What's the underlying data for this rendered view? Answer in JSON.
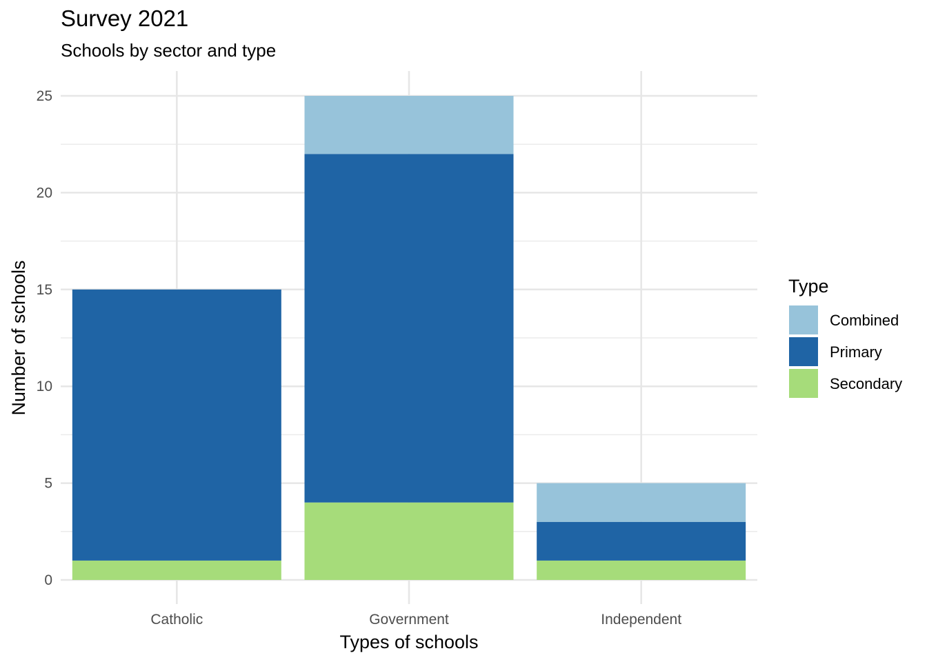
{
  "chart_data": {
    "type": "bar",
    "stacked": true,
    "title": "Survey 2021",
    "subtitle": "Schools by sector and type",
    "xlabel": "Types of schools",
    "ylabel": "Number of schools",
    "categories": [
      "Catholic",
      "Government",
      "Independent"
    ],
    "series": [
      {
        "name": "Secondary",
        "color": "#a6dc7a",
        "values": [
          1,
          4,
          1
        ]
      },
      {
        "name": "Primary",
        "color": "#1f64a5",
        "values": [
          14,
          18,
          2
        ]
      },
      {
        "name": "Combined",
        "color": "#97c3da",
        "values": [
          0,
          3,
          2
        ]
      }
    ],
    "ylim": [
      0,
      25
    ],
    "yticks": [
      0,
      5,
      10,
      15,
      20,
      25
    ],
    "grid": true,
    "legend": {
      "title": "Type",
      "position": "right",
      "entries": [
        "Combined",
        "Primary",
        "Secondary"
      ]
    }
  }
}
